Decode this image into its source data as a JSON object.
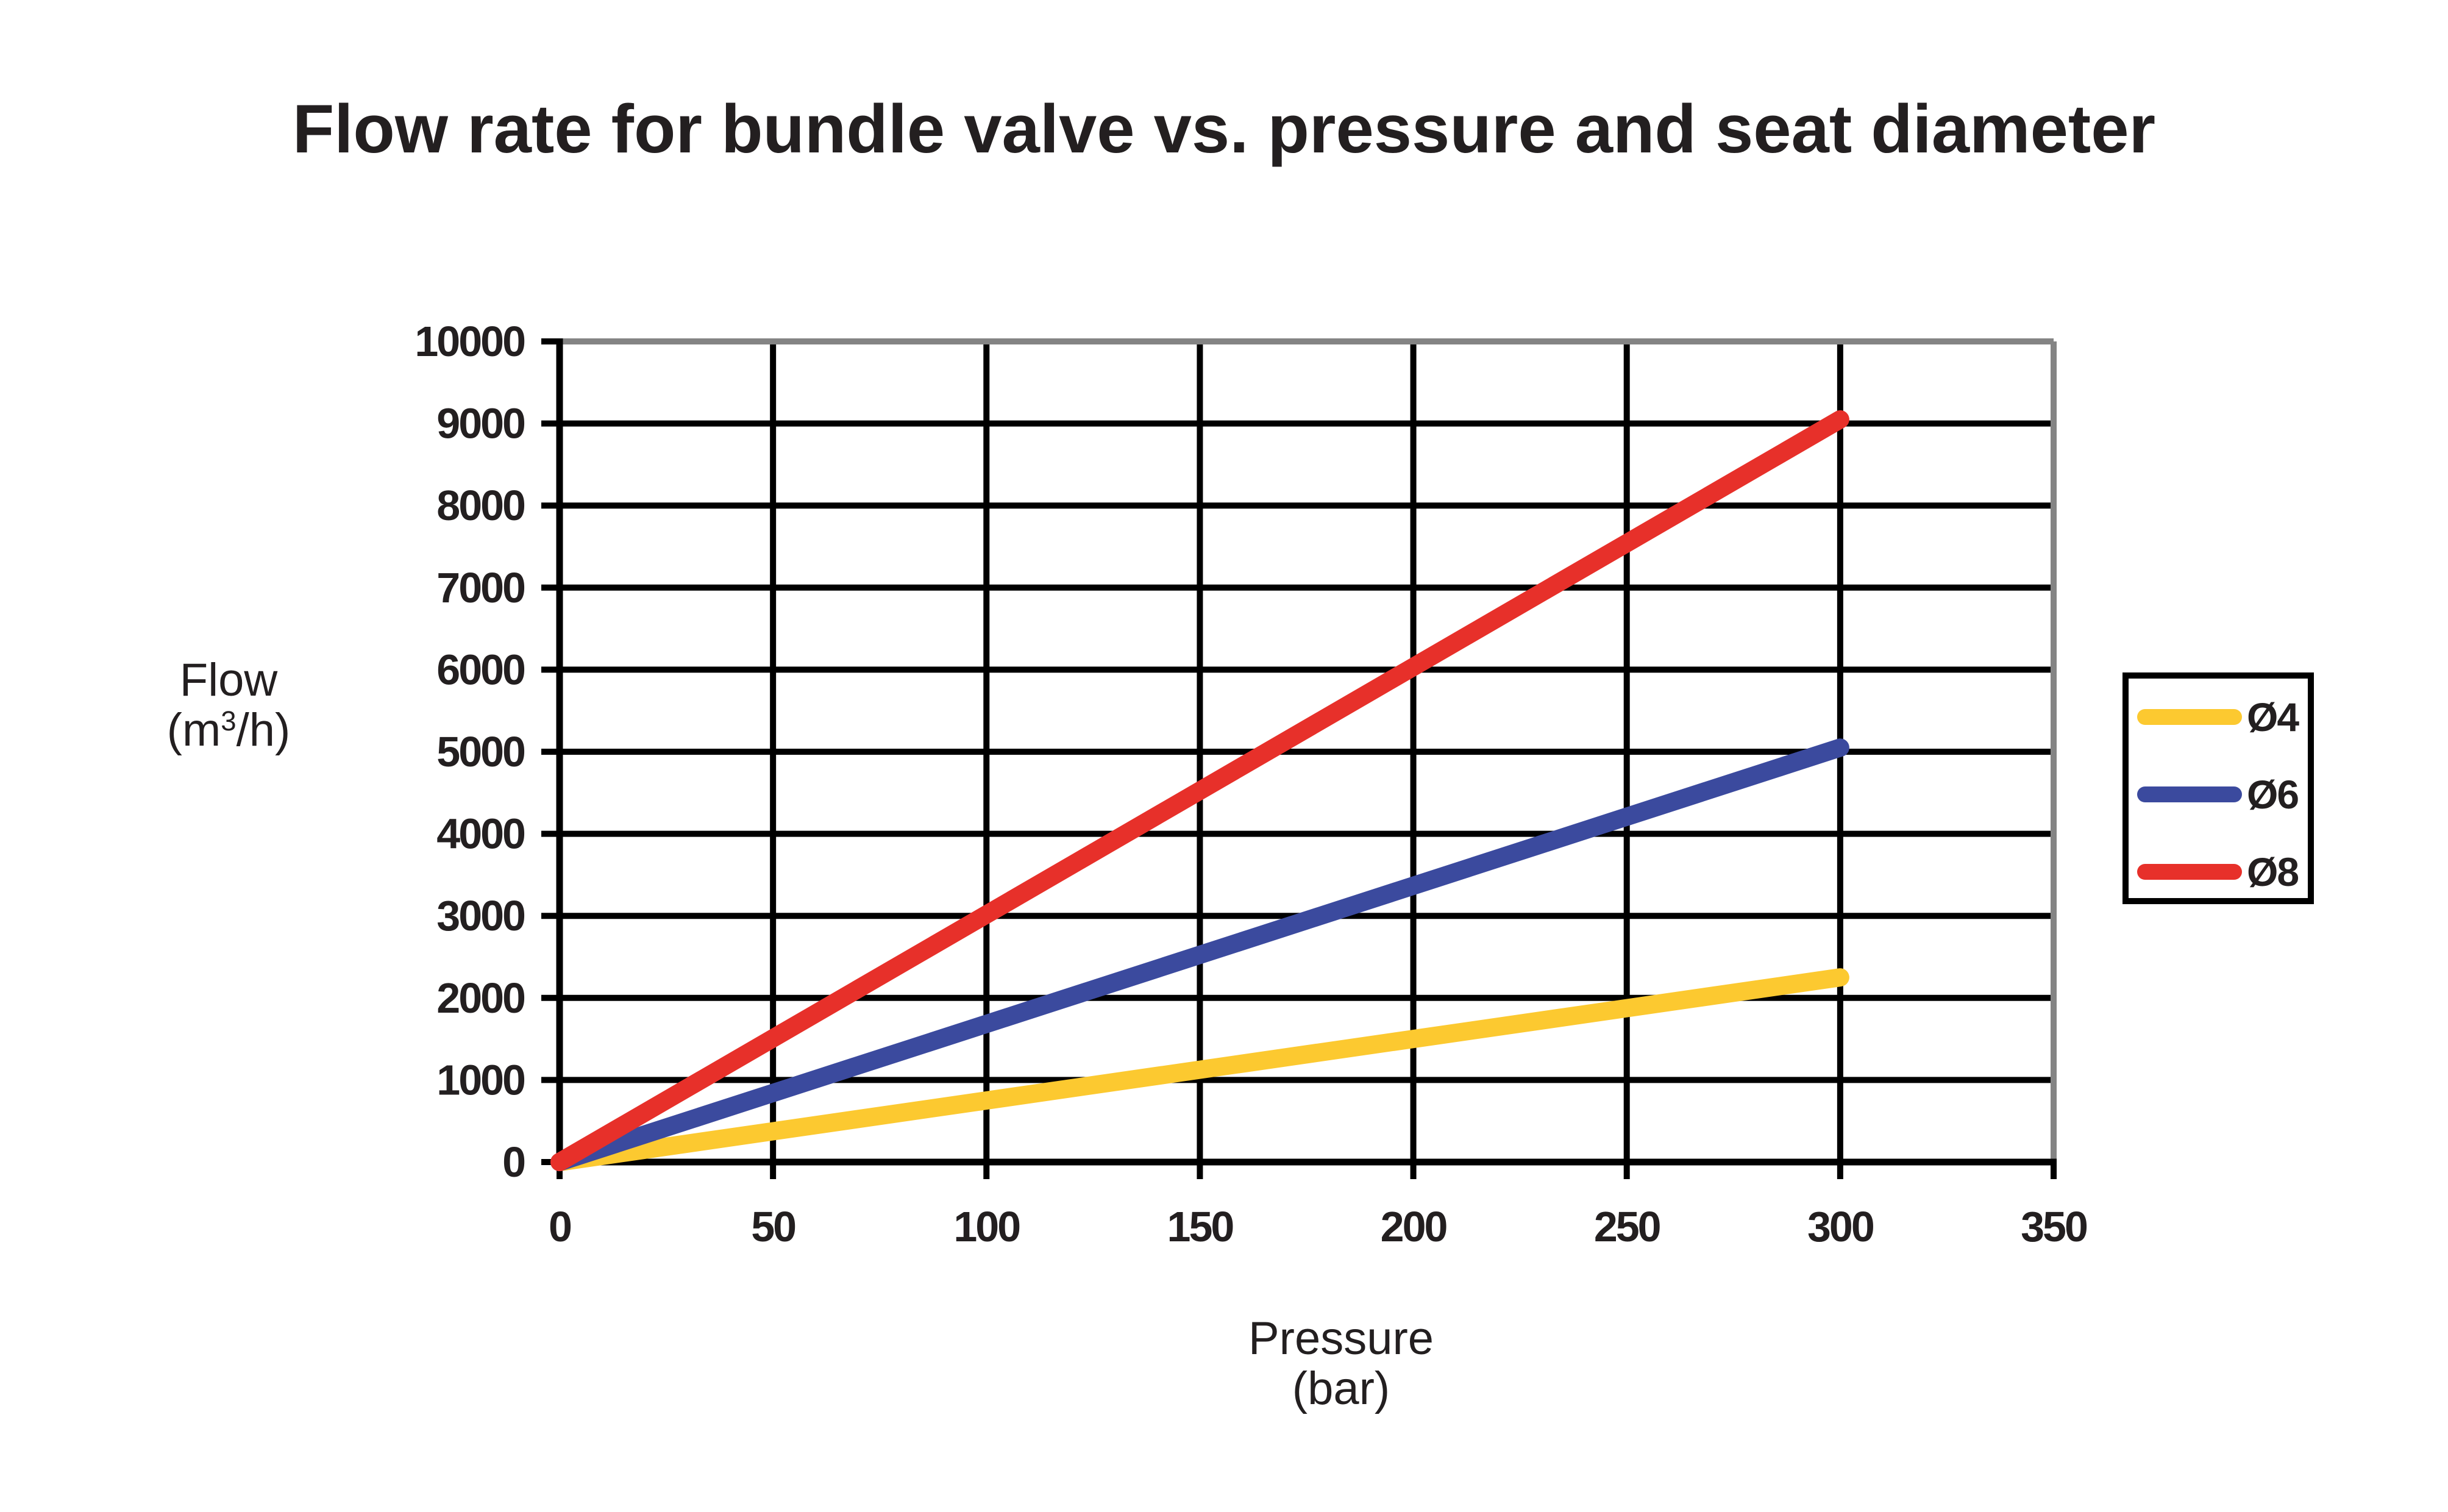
{
  "chart_data": {
    "type": "line",
    "title": "Flow rate for bundle valve vs. pressure and seat diameter",
    "xlabel": "Pressure",
    "xlabel_unit": "(bar)",
    "ylabel": "Flow",
    "ylabel_unit_prefix": "(m",
    "ylabel_unit_sup": "3",
    "ylabel_unit_suffix": "/h)",
    "xlim": [
      0,
      350
    ],
    "ylim": [
      0,
      10000
    ],
    "x_ticks": [
      0,
      50,
      100,
      150,
      200,
      250,
      300,
      350
    ],
    "y_ticks": [
      0,
      1000,
      2000,
      3000,
      4000,
      5000,
      6000,
      7000,
      8000,
      9000,
      10000
    ],
    "grid": true,
    "legend_position": "right",
    "series": [
      {
        "name": "Ø4",
        "color": "#fcc930",
        "x": [
          0,
          300
        ],
        "y": [
          0,
          2250
        ]
      },
      {
        "name": "Ø6",
        "color": "#3b4a9e",
        "x": [
          0,
          300
        ],
        "y": [
          0,
          5050
        ]
      },
      {
        "name": "Ø8",
        "color": "#e7302a",
        "x": [
          0,
          300
        ],
        "y": [
          0,
          9050
        ]
      }
    ]
  }
}
